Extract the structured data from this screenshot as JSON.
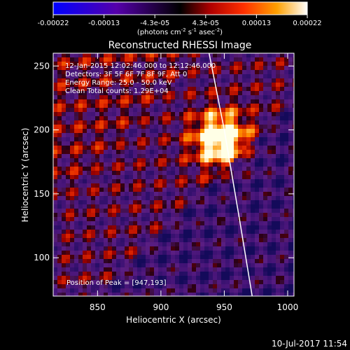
{
  "chart_data": {
    "type": "heatmap",
    "title": "Reconstructed RHESSI Image",
    "xlabel": "Heliocentric X (arcsec)",
    "ylabel": "Heliocentric Y (arcsec)",
    "x_ticks": [
      850,
      900,
      950,
      1000
    ],
    "y_ticks": [
      100,
      150,
      200,
      250
    ],
    "xlim": [
      815,
      1005
    ],
    "ylim": [
      70,
      260
    ],
    "colorbar": {
      "ticks": [
        "-0.00022",
        "-0.00013",
        "-4.3e-05",
        "4.3e-05",
        "0.00013",
        "0.00022"
      ],
      "range": [
        -0.00022,
        0.00022
      ],
      "unit_prefix": "(photons cm",
      "unit_exp1": "-2",
      "unit_mid": " s",
      "unit_exp2": "-1",
      "unit_mid2": " asec",
      "unit_exp3": "-2",
      "unit_suffix": ")"
    },
    "annotations": [
      "12-Jan-2015 12:02:46.000 to 12:12:46.000",
      "Detectors: 3F 5F 6F 7F 8F 9F, Att 0",
      "Energy Range: 25.0 - 50.0 keV",
      "Clean     Total counts: 1.29E+04"
    ],
    "peak_label": "Position of Peak = [947,193]",
    "peak": [
      947,
      193
    ],
    "limb_points": [
      [
        938,
        260
      ],
      [
        950,
        200
      ],
      [
        962,
        130
      ],
      [
        972,
        70
      ]
    ]
  },
  "footer_timestamp": "10-Jul-2017 11:54"
}
